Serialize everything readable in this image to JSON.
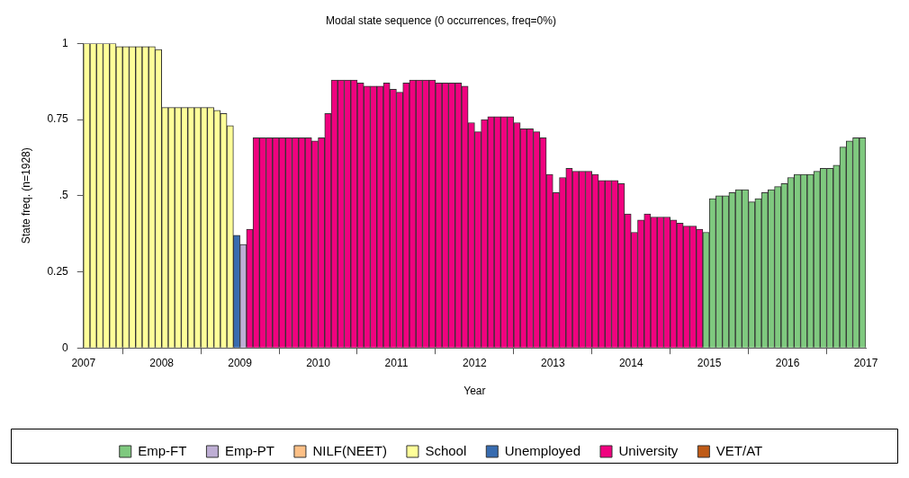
{
  "chart_data": {
    "type": "bar",
    "title": "Modal state sequence (0 occurrences, freq=0%)",
    "xlabel": "Year",
    "ylabel": "State freq. (n=1928)",
    "legend": "bottom",
    "xlim": [
      "2007",
      "2017"
    ],
    "xticks": [
      "2007",
      "2008",
      "2009",
      "2010",
      "2011",
      "2012",
      "2013",
      "2014",
      "2015",
      "2016",
      "2017"
    ],
    "ylim": [
      0,
      1
    ],
    "yticks": [
      0,
      0.25,
      {
        "value": 0.5,
        "label": ".5"
      },
      0.75,
      1
    ],
    "series": [
      {
        "name": "Emp-FT",
        "color": "#7fc97f",
        "x": [
          "2014-12",
          "2015-01",
          "2015-02",
          "2015-03",
          "2015-04",
          "2015-05",
          "2015-06",
          "2015-07",
          "2015-08",
          "2015-09",
          "2015-10",
          "2015-11",
          "2015-12",
          "2016-01",
          "2016-02",
          "2016-03",
          "2016-04",
          "2016-05",
          "2016-06",
          "2016-07",
          "2016-08",
          "2016-09",
          "2016-10",
          "2016-11",
          "2016-12"
        ],
        "values": [
          0.38,
          0.49,
          0.5,
          0.5,
          0.51,
          0.52,
          0.52,
          0.48,
          0.49,
          0.51,
          0.52,
          0.53,
          0.54,
          0.56,
          0.57,
          0.57,
          0.57,
          0.58,
          0.59,
          0.59,
          0.6,
          0.66,
          0.68,
          0.69,
          0.69
        ]
      },
      {
        "name": "Emp-PT",
        "color": "#beaed4",
        "x": [
          "2009-01"
        ],
        "values": [
          0.34
        ]
      },
      {
        "name": "NILF(NEET)",
        "color": "#fdc086"
      },
      {
        "name": "School",
        "color": "#ffff99",
        "x": [
          "2007-01",
          "2007-02",
          "2007-03",
          "2007-04",
          "2007-05",
          "2007-06",
          "2007-07",
          "2007-08",
          "2007-09",
          "2007-10",
          "2007-11",
          "2007-12",
          "2008-01",
          "2008-02",
          "2008-03",
          "2008-04",
          "2008-05",
          "2008-06",
          "2008-07",
          "2008-08",
          "2008-09",
          "2008-10",
          "2008-11"
        ],
        "values": [
          1,
          1,
          1,
          1,
          1,
          0.99,
          0.99,
          0.99,
          0.99,
          0.99,
          0.99,
          0.98,
          0.79,
          0.79,
          0.79,
          0.79,
          0.79,
          0.79,
          0.79,
          0.79,
          0.78,
          0.77,
          0.73
        ]
      },
      {
        "name": "Unemployed",
        "color": "#386cb0",
        "x": [
          "2008-12"
        ],
        "values": [
          0.37
        ]
      },
      {
        "name": "University",
        "color": "#f0027f",
        "x": [
          "2009-02",
          "2009-03",
          "2009-04",
          "2009-05",
          "2009-06",
          "2009-07",
          "2009-08",
          "2009-09",
          "2009-10",
          "2009-11",
          "2009-12",
          "2010-01",
          "2010-02",
          "2010-03",
          "2010-04",
          "2010-05",
          "2010-06",
          "2010-07",
          "2010-08",
          "2010-09",
          "2010-10",
          "2010-11",
          "2010-12",
          "2011-01",
          "2011-02",
          "2011-03",
          "2011-04",
          "2011-05",
          "2011-06",
          "2011-07",
          "2011-08",
          "2011-09",
          "2011-10",
          "2011-11",
          "2011-12",
          "2012-01",
          "2012-02",
          "2012-03",
          "2012-04",
          "2012-05",
          "2012-06",
          "2012-07",
          "2012-08",
          "2012-09",
          "2012-10",
          "2012-11",
          "2012-12",
          "2013-01",
          "2013-02",
          "2013-03",
          "2013-04",
          "2013-05",
          "2013-06",
          "2013-07",
          "2013-08",
          "2013-09",
          "2013-10",
          "2013-11",
          "2013-12",
          "2014-01",
          "2014-02",
          "2014-03",
          "2014-04",
          "2014-05",
          "2014-06",
          "2014-07",
          "2014-08",
          "2014-09",
          "2014-10",
          "2014-11"
        ],
        "values": [
          0.39,
          0.69,
          0.69,
          0.69,
          0.69,
          0.69,
          0.69,
          0.69,
          0.69,
          0.69,
          0.68,
          0.69,
          0.77,
          0.88,
          0.88,
          0.88,
          0.88,
          0.87,
          0.86,
          0.86,
          0.86,
          0.87,
          0.85,
          0.84,
          0.87,
          0.88,
          0.88,
          0.88,
          0.88,
          0.87,
          0.87,
          0.87,
          0.87,
          0.86,
          0.74,
          0.71,
          0.75,
          0.76,
          0.76,
          0.76,
          0.76,
          0.74,
          0.72,
          0.72,
          0.71,
          0.69,
          0.57,
          0.51,
          0.56,
          0.59,
          0.58,
          0.58,
          0.58,
          0.57,
          0.55,
          0.55,
          0.55,
          0.54,
          0.44,
          0.38,
          0.42,
          0.44,
          0.43,
          0.43,
          0.43,
          0.42,
          0.41,
          0.4,
          0.4,
          0.39
        ]
      },
      {
        "name": "VET/AT",
        "color": "#bf5b17"
      }
    ]
  }
}
